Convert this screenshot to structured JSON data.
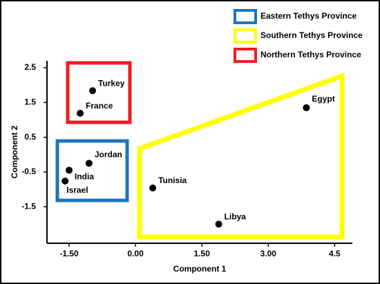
{
  "chart_data": {
    "type": "scatter",
    "x_label": "Component 1",
    "y_label": "Component 2",
    "labels": [
      "Turkey",
      "France",
      "Jordan",
      "India",
      "Israel",
      "Tunisia",
      "Libya",
      "Egypt"
    ],
    "x": [
      -0.97,
      -1.25,
      -1.05,
      -1.5,
      -1.59,
      0.39,
      1.88,
      3.86
    ],
    "values": [
      1.84,
      1.19,
      -0.25,
      -0.45,
      -0.76,
      -0.96,
      -2.0,
      1.35
    ],
    "color": "#000000",
    "xlim": [
      -2.0,
      4.9
    ],
    "ylim": [
      -2.55,
      2.7
    ],
    "xticks": [
      {
        "value": -1.5,
        "label": "-1.50"
      },
      {
        "value": 0,
        "label": "0.00"
      },
      {
        "value": 1.5,
        "label": "1.50"
      },
      {
        "value": 3,
        "label": "3.00"
      },
      4.5
    ],
    "yticks": [
      2.5,
      1.5,
      0.5,
      -0.5,
      -1.5
    ],
    "legend": [
      {
        "name": "Eastern Tethys Province",
        "color": "#1b75bc"
      },
      {
        "name": "Southern Tethys Province",
        "color": "#ffff00"
      },
      {
        "name": "Northern Tethys Province",
        "color": "#ed1c24"
      }
    ]
  }
}
